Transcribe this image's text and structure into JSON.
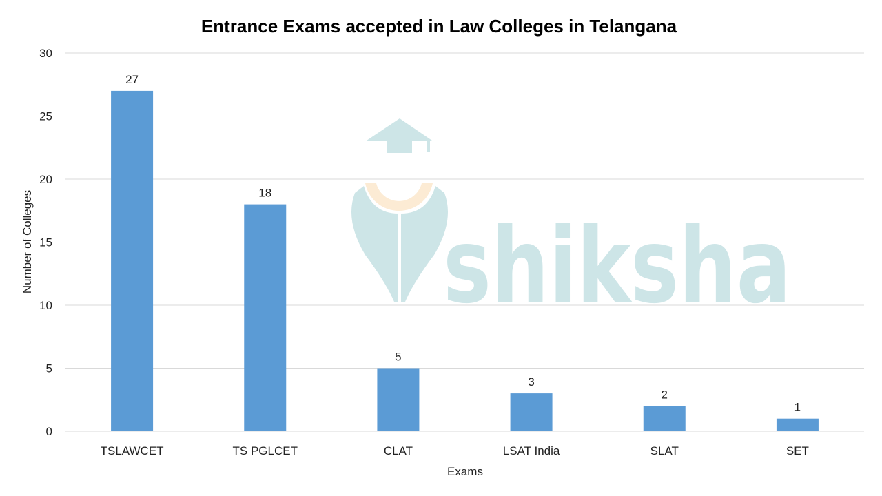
{
  "chart_data": {
    "type": "bar",
    "title": "Entrance Exams accepted in Law Colleges in Telangana",
    "xlabel": "Exams",
    "ylabel": "Number of Colleges",
    "categories": [
      "TSLAWCET",
      "TS PGLCET",
      "CLAT",
      "LSAT India",
      "SLAT",
      "SET"
    ],
    "values": [
      27,
      18,
      5,
      3,
      2,
      1
    ],
    "data_labels": [
      "27",
      "18",
      "5",
      "3",
      "2",
      "1"
    ],
    "ylim": [
      0,
      30
    ],
    "yticks": [
      "0",
      "5",
      "10",
      "15",
      "20",
      "25",
      "30"
    ],
    "grid": true,
    "legend": "none",
    "bar_color": "#5B9BD5",
    "gridline_color": "#D9D9D9"
  },
  "watermark": {
    "text": "shiksha",
    "color": "#CDE5E7",
    "accent_color": "#FCEBD4"
  }
}
